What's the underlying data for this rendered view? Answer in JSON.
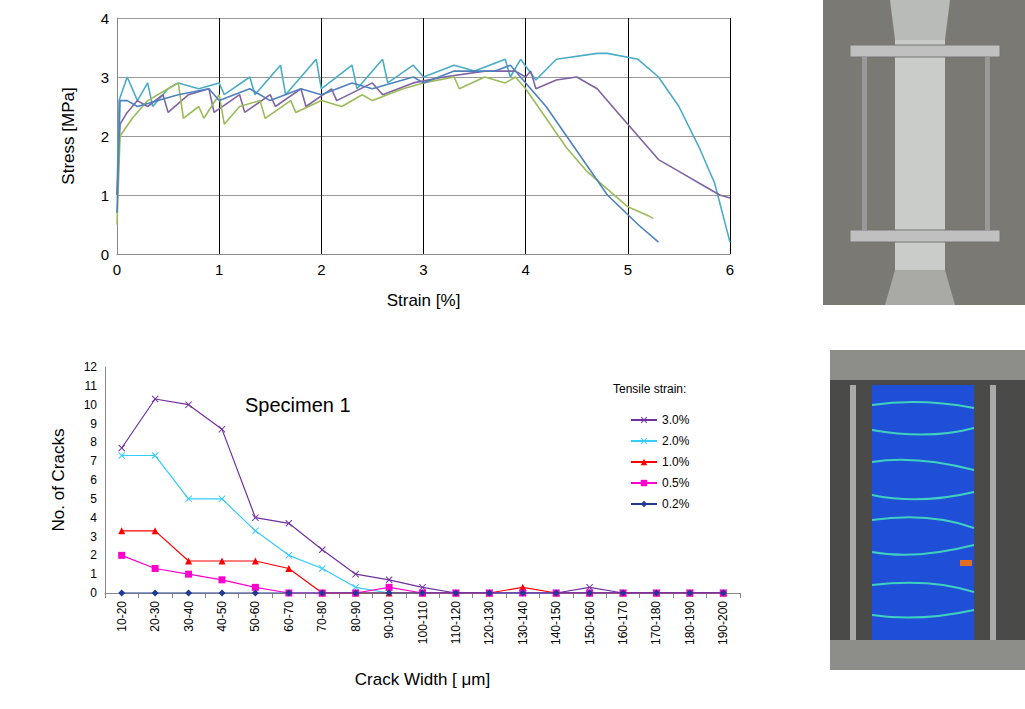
{
  "chart_data": [
    {
      "type": "line",
      "x_label": "Strain [%]",
      "y_label": "Stress [MPa]",
      "xlim": [
        0,
        6
      ],
      "xticks": [
        0,
        1,
        2,
        3,
        4,
        5,
        6
      ],
      "ylim": [
        0,
        4
      ],
      "yticks": [
        0,
        1,
        2,
        3,
        4
      ],
      "grid": true,
      "series": [
        {
          "color": "#4bacc6",
          "x": [
            0,
            0.02,
            0.1,
            0.2,
            0.3,
            0.35,
            0.5,
            0.6,
            0.8,
            1.0,
            1.05,
            1.3,
            1.35,
            1.6,
            1.65,
            1.95,
            2.0,
            2.3,
            2.35,
            2.6,
            2.65,
            2.9,
            3.0,
            3.3,
            3.5,
            3.8,
            3.85,
            3.95,
            4.1,
            4.3,
            4.7,
            4.8,
            5.1,
            5.3,
            5.5,
            5.7,
            5.85,
            5.97,
            6.0
          ],
          "values": [
            1.0,
            2.6,
            3.0,
            2.6,
            2.9,
            2.5,
            2.8,
            2.9,
            2.8,
            2.9,
            2.7,
            3.0,
            2.7,
            3.2,
            2.7,
            3.3,
            2.8,
            3.2,
            2.8,
            3.3,
            2.9,
            3.2,
            3.0,
            3.2,
            3.1,
            3.3,
            3.0,
            3.3,
            2.95,
            3.3,
            3.4,
            3.4,
            3.3,
            3.0,
            2.5,
            1.8,
            1.2,
            0.4,
            0.2
          ]
        },
        {
          "color": "#8064a2",
          "x": [
            0,
            0.03,
            0.1,
            0.2,
            0.3,
            0.45,
            0.5,
            0.7,
            0.9,
            0.95,
            1.2,
            1.25,
            1.5,
            1.55,
            1.8,
            1.85,
            2.1,
            2.15,
            2.5,
            2.6,
            2.9,
            3.2,
            3.6,
            3.9,
            4.0,
            4.05,
            4.1,
            4.3,
            4.5,
            4.7,
            4.9,
            5.1,
            5.3,
            5.5,
            5.7,
            5.9,
            6.0
          ],
          "values": [
            1.0,
            2.2,
            2.4,
            2.6,
            2.5,
            2.7,
            2.4,
            2.7,
            2.8,
            2.4,
            2.7,
            2.4,
            2.7,
            2.5,
            2.8,
            2.5,
            2.8,
            2.6,
            2.9,
            2.7,
            2.9,
            3.0,
            3.1,
            3.1,
            3.0,
            3.1,
            2.8,
            2.95,
            3.0,
            2.8,
            2.4,
            2.0,
            1.6,
            1.4,
            1.2,
            1.0,
            0.95
          ]
        },
        {
          "color": "#9bbb59",
          "x": [
            0,
            0.03,
            0.15,
            0.3,
            0.5,
            0.6,
            0.65,
            0.8,
            0.85,
            1.0,
            1.05,
            1.2,
            1.4,
            1.45,
            1.7,
            1.75,
            2.0,
            2.2,
            2.4,
            2.5,
            2.8,
            3.0,
            3.3,
            3.35,
            3.6,
            3.8,
            3.9,
            4.0,
            4.2,
            4.4,
            4.6,
            4.8,
            5.0,
            5.2,
            5.25
          ],
          "values": [
            0.5,
            2.0,
            2.3,
            2.6,
            2.8,
            2.9,
            2.3,
            2.5,
            2.3,
            2.7,
            2.2,
            2.5,
            2.6,
            2.3,
            2.6,
            2.4,
            2.6,
            2.5,
            2.7,
            2.6,
            2.8,
            2.9,
            3.0,
            2.8,
            3.0,
            2.9,
            3.0,
            2.8,
            2.3,
            1.8,
            1.4,
            1.1,
            0.8,
            0.65,
            0.6
          ]
        },
        {
          "color": "#4f81bd",
          "x": [
            0,
            0.03,
            0.1,
            0.2,
            0.4,
            0.6,
            0.9,
            1.0,
            1.3,
            1.5,
            1.8,
            2.0,
            2.3,
            2.5,
            2.9,
            3.0,
            3.3,
            3.7,
            3.85,
            3.9,
            4.0,
            4.2,
            4.4,
            4.6,
            4.8,
            5.1,
            5.3
          ],
          "values": [
            0.7,
            2.6,
            2.6,
            2.5,
            2.6,
            2.7,
            2.8,
            2.6,
            2.8,
            2.6,
            2.8,
            2.7,
            2.9,
            2.8,
            3.0,
            2.9,
            3.1,
            3.1,
            3.2,
            3.1,
            2.9,
            2.5,
            2.0,
            1.5,
            1.0,
            0.5,
            0.2
          ]
        }
      ]
    },
    {
      "type": "line",
      "x_label": "Crack Width [ μm]",
      "y_label": "No. of Cracks",
      "annotations": [
        "Specimen 1",
        "Tensile strain:"
      ],
      "categories": [
        "10-20",
        "20-30",
        "30-40",
        "40-50",
        "50-60",
        "60-70",
        "70-80",
        "80-90",
        "90-100",
        "100-110",
        "110-120",
        "120-130",
        "130-140",
        "140-150",
        "150-160",
        "160-170",
        "170-180",
        "180-190",
        "190-200"
      ],
      "ylim": [
        0,
        12
      ],
      "yticks": [
        0,
        1,
        2,
        3,
        4,
        5,
        6,
        7,
        8,
        9,
        10,
        11,
        12
      ],
      "grid": false,
      "legend": "right",
      "series": [
        {
          "name": "3.0%",
          "color": "#7030a0",
          "marker": "x",
          "values": [
            7.7,
            10.3,
            10,
            8.7,
            4,
            3.7,
            2.3,
            1,
            0.7,
            0.3,
            0,
            0,
            0,
            0,
            0.3,
            0,
            0,
            0,
            0
          ]
        },
        {
          "name": "2.0%",
          "color": "#33ccff",
          "marker": "x",
          "values": [
            7.3,
            7.3,
            5,
            5,
            3.3,
            2,
            1.3,
            0.3,
            0,
            0,
            0,
            0,
            0,
            0,
            0,
            0,
            0,
            0,
            0
          ]
        },
        {
          "name": "1.0%",
          "color": "#ff0000",
          "marker": "triangle",
          "values": [
            3.3,
            3.3,
            1.7,
            1.7,
            1.7,
            1.3,
            0,
            0,
            0,
            0,
            0,
            0,
            0.3,
            0,
            0,
            0,
            0,
            0,
            0
          ]
        },
        {
          "name": "0.5%",
          "color": "#ff00cc",
          "marker": "square",
          "values": [
            2,
            1.3,
            1,
            0.7,
            0.3,
            0,
            0,
            0,
            0.3,
            0,
            0,
            0,
            0,
            0,
            0,
            0,
            0,
            0,
            0
          ]
        },
        {
          "name": "0.2%",
          "color": "#1f3a93",
          "marker": "diamond",
          "values": [
            0,
            0,
            0,
            0,
            0,
            0,
            0,
            0,
            0,
            0,
            0,
            0,
            0,
            0,
            0,
            0,
            0,
            0,
            0
          ]
        }
      ]
    }
  ]
}
